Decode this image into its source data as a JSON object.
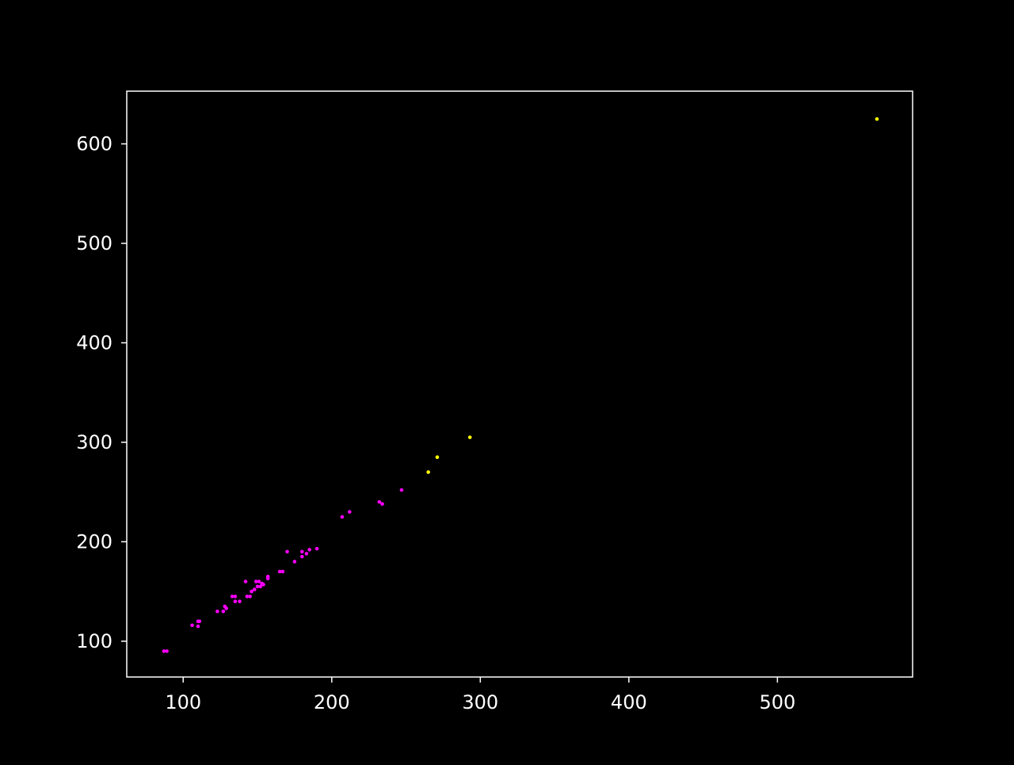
{
  "chart_data": {
    "type": "scatter",
    "title": "",
    "xlabel": "",
    "ylabel": "",
    "xlim": [
      62,
      591
    ],
    "ylim": [
      64,
      653
    ],
    "xticks": [
      100,
      200,
      300,
      400,
      500
    ],
    "yticks": [
      100,
      200,
      300,
      400,
      500,
      600
    ],
    "grid": false,
    "legend": null,
    "background_color": "#000000",
    "axes_color": "#ffffff",
    "series": [
      {
        "color": "#ff00ff",
        "points": [
          [
            87,
            90
          ],
          [
            89,
            90
          ],
          [
            106,
            116
          ],
          [
            110,
            115
          ],
          [
            110,
            120
          ],
          [
            111,
            120
          ],
          [
            123,
            130
          ],
          [
            127,
            130
          ],
          [
            128,
            135
          ],
          [
            129,
            133
          ],
          [
            133,
            145
          ],
          [
            135,
            145
          ],
          [
            135,
            140
          ],
          [
            138,
            140
          ],
          [
            142,
            160
          ],
          [
            143,
            145
          ],
          [
            145,
            145
          ],
          [
            146,
            150
          ],
          [
            148,
            152
          ],
          [
            149,
            160
          ],
          [
            150,
            155
          ],
          [
            151,
            160
          ],
          [
            152,
            155
          ],
          [
            153,
            158
          ],
          [
            154,
            157
          ],
          [
            157,
            163
          ],
          [
            157,
            165
          ],
          [
            165,
            170
          ],
          [
            167,
            170
          ],
          [
            170,
            190
          ],
          [
            175,
            180
          ],
          [
            180,
            185
          ],
          [
            180,
            190
          ],
          [
            183,
            188
          ],
          [
            185,
            192
          ],
          [
            190,
            193
          ],
          [
            207,
            225
          ],
          [
            212,
            230
          ],
          [
            232,
            240
          ],
          [
            234,
            238
          ],
          [
            247,
            252
          ]
        ]
      },
      {
        "color": "#ffff00",
        "points": [
          [
            265,
            270
          ],
          [
            271,
            285
          ],
          [
            293,
            305
          ],
          [
            567,
            625
          ]
        ]
      }
    ]
  }
}
